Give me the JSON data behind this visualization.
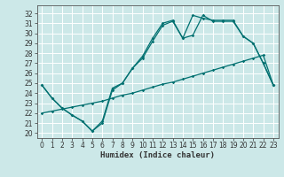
{
  "title": "",
  "xlabel": "Humidex (Indice chaleur)",
  "bg_color": "#cce8e8",
  "grid_color": "#ffffff",
  "line_color": "#007070",
  "xlim": [
    -0.5,
    23.5
  ],
  "ylim": [
    19.5,
    32.8
  ],
  "xticks": [
    0,
    1,
    2,
    3,
    4,
    5,
    6,
    7,
    8,
    9,
    10,
    11,
    12,
    13,
    14,
    15,
    16,
    17,
    18,
    19,
    20,
    21,
    22,
    23
  ],
  "yticks": [
    20,
    21,
    22,
    23,
    24,
    25,
    26,
    27,
    28,
    29,
    30,
    31,
    32
  ],
  "line1_x": [
    0,
    1,
    2,
    3,
    4,
    5,
    6,
    7,
    8,
    9,
    10,
    11,
    12,
    13,
    14,
    15,
    16,
    17,
    18,
    19,
    20,
    21,
    22,
    23
  ],
  "line1_y": [
    24.8,
    23.5,
    22.5,
    21.8,
    21.2,
    20.2,
    21.2,
    24.5,
    25.0,
    26.5,
    27.5,
    29.2,
    30.8,
    31.2,
    29.5,
    29.8,
    31.8,
    31.2,
    31.2,
    31.2,
    29.7,
    29.0,
    27.0,
    24.8
  ],
  "line2_x": [
    0,
    1,
    2,
    3,
    4,
    5,
    6,
    7,
    8,
    9,
    10,
    11,
    12,
    13,
    14,
    15,
    16,
    17,
    18,
    19,
    20,
    21,
    22,
    23
  ],
  "line2_y": [
    24.8,
    23.5,
    22.5,
    21.8,
    21.2,
    20.2,
    21.0,
    24.3,
    25.0,
    26.5,
    27.7,
    29.5,
    31.0,
    31.3,
    29.5,
    31.8,
    31.5,
    31.3,
    31.3,
    31.3,
    29.7,
    29.0,
    27.0,
    24.8
  ],
  "line3_x": [
    0,
    1,
    2,
    3,
    4,
    5,
    6,
    7,
    8,
    9,
    10,
    11,
    12,
    13,
    14,
    15,
    16,
    17,
    18,
    19,
    20,
    21,
    22,
    23
  ],
  "line3_y": [
    22.0,
    22.2,
    22.4,
    22.6,
    22.8,
    23.0,
    23.2,
    23.5,
    23.8,
    24.0,
    24.3,
    24.6,
    24.9,
    25.1,
    25.4,
    25.7,
    26.0,
    26.3,
    26.6,
    26.9,
    27.2,
    27.5,
    27.8,
    24.8
  ],
  "tick_fontsize": 5.5,
  "xlabel_fontsize": 6.5,
  "marker": "D",
  "markersize": 1.8,
  "linewidth": 0.9
}
